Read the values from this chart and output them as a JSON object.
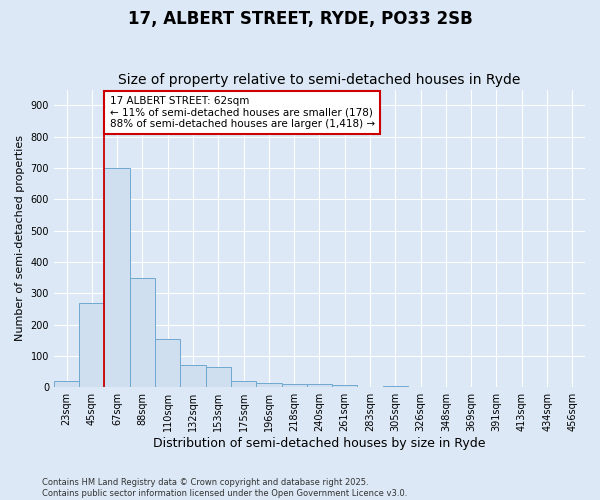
{
  "title1": "17, ALBERT STREET, RYDE, PO33 2SB",
  "title2": "Size of property relative to semi-detached houses in Ryde",
  "xlabel": "Distribution of semi-detached houses by size in Ryde",
  "ylabel": "Number of semi-detached properties",
  "footer": "Contains HM Land Registry data © Crown copyright and database right 2025.\nContains public sector information licensed under the Open Government Licence v3.0.",
  "bin_labels": [
    "23sqm",
    "45sqm",
    "67sqm",
    "88sqm",
    "110sqm",
    "132sqm",
    "153sqm",
    "175sqm",
    "196sqm",
    "218sqm",
    "240sqm",
    "261sqm",
    "283sqm",
    "305sqm",
    "326sqm",
    "348sqm",
    "369sqm",
    "391sqm",
    "413sqm",
    "434sqm",
    "456sqm"
  ],
  "bar_values": [
    20,
    270,
    700,
    350,
    155,
    70,
    65,
    20,
    15,
    10,
    10,
    7,
    0,
    5,
    0,
    0,
    0,
    0,
    0,
    0,
    0
  ],
  "bar_color": "#cfdff0",
  "bar_edge_color": "#6fa8d0",
  "background_color": "#dce8f5",
  "plot_bg_color": "#dce8f5",
  "grid_color": "#ffffff",
  "annotation_text": "17 ALBERT STREET: 62sqm\n← 11% of semi-detached houses are smaller (178)\n88% of semi-detached houses are larger (1,418) →",
  "annotation_box_color": "#ffffff",
  "annotation_border_color": "#cc0000",
  "ylim": [
    0,
    950
  ],
  "yticks": [
    0,
    100,
    200,
    300,
    400,
    500,
    600,
    700,
    800,
    900
  ],
  "title1_fontsize": 12,
  "title2_fontsize": 10,
  "xlabel_fontsize": 9,
  "ylabel_fontsize": 8,
  "tick_fontsize": 7,
  "annotation_fontsize": 7.5,
  "footer_fontsize": 6
}
